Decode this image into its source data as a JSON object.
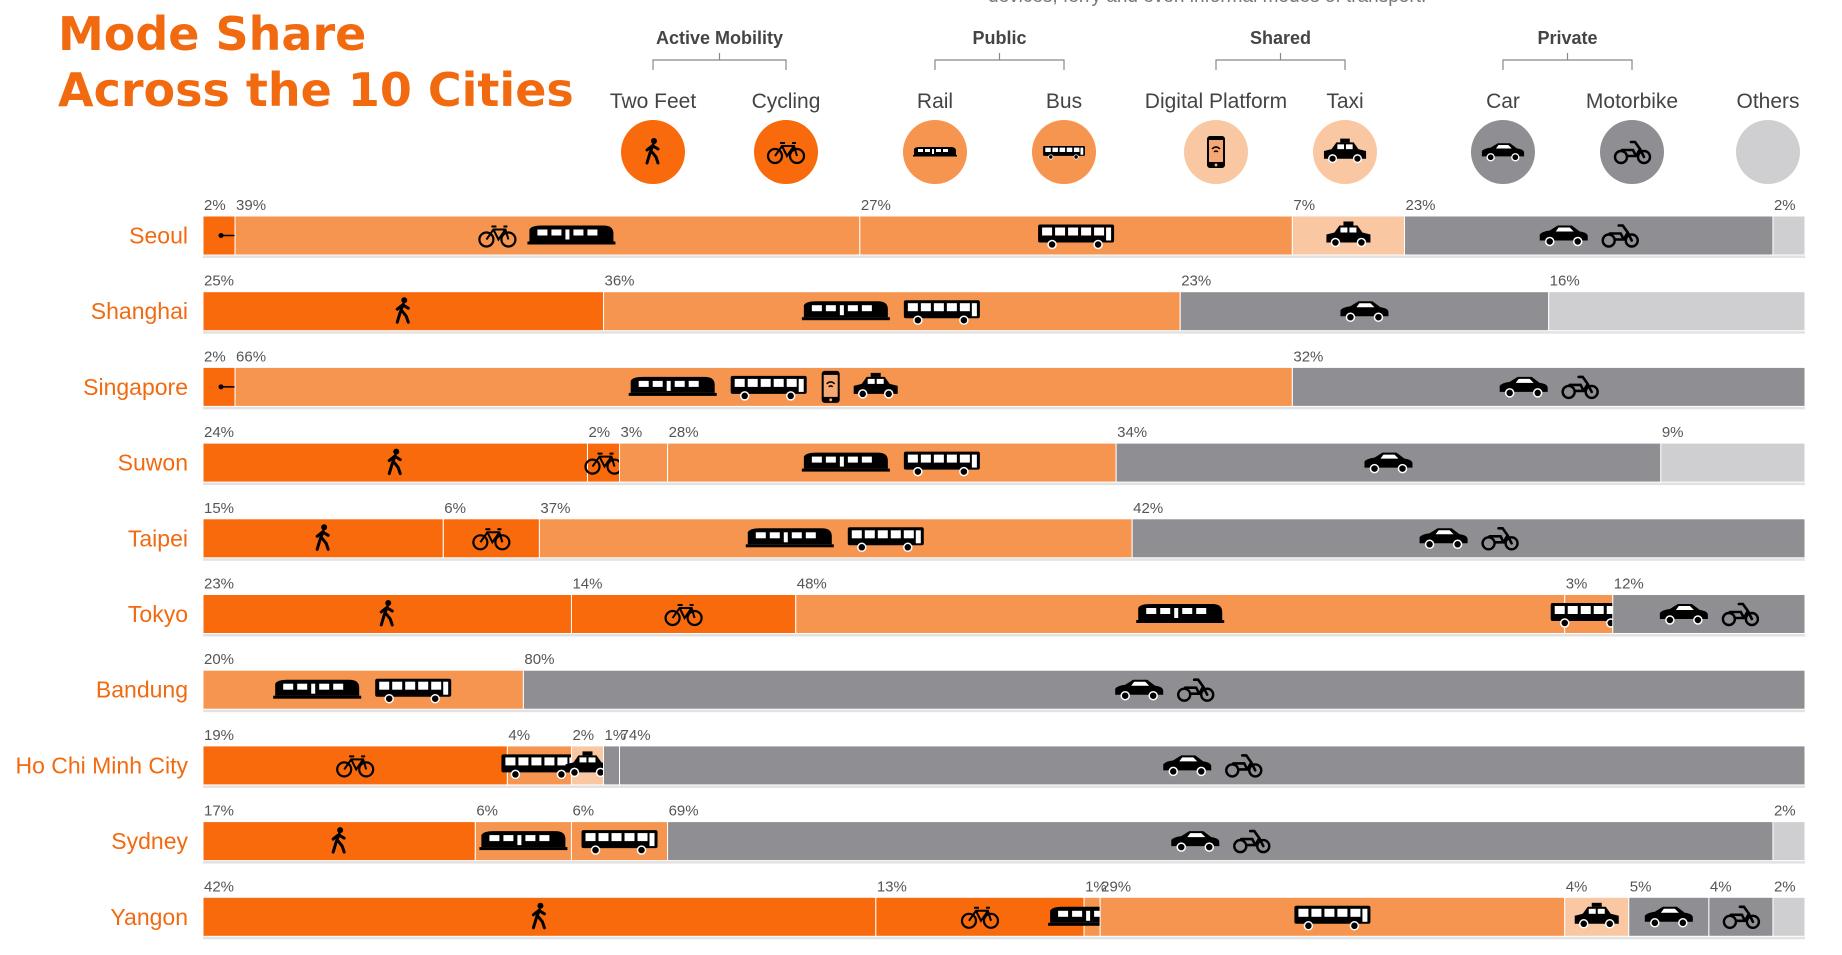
{
  "title": [
    "Mode Share",
    "Across the 10 Cities"
  ],
  "top_note": "devices, ferry and even informal modes of transport.",
  "legend": {
    "groups": [
      {
        "label": "Active Mobility"
      },
      {
        "label": "Public"
      },
      {
        "label": "Shared"
      },
      {
        "label": "Private"
      }
    ],
    "items": [
      {
        "label": "Two Feet",
        "icon": "walk-icon",
        "color": "#f96a0c"
      },
      {
        "label": "Cycling",
        "icon": "bicycle-icon",
        "color": "#f96a0c"
      },
      {
        "label": "Rail",
        "icon": "train-icon",
        "color": "#f6954f"
      },
      {
        "label": "Bus",
        "icon": "bus-icon",
        "color": "#f6954f"
      },
      {
        "label": "Digital Platform",
        "icon": "smartphone-icon",
        "color": "#fac7a3"
      },
      {
        "label": "Taxi",
        "icon": "taxi-icon",
        "color": "#fac7a3"
      },
      {
        "label": "Car",
        "icon": "car-icon",
        "color": "#8f8f93"
      },
      {
        "label": "Motorbike",
        "icon": "motorbike-icon",
        "color": "#8f8f93"
      },
      {
        "label": "Others",
        "icon": "",
        "color": "#cfcfd1"
      }
    ]
  },
  "colors": {
    "active": "#f96a0c",
    "public": "#f6954f",
    "shared": "#fac7a3",
    "private": "#8f8f93",
    "others": "#cfcfd1",
    "city_label": "#f26a10"
  },
  "chart_data": {
    "type": "bar",
    "orientation": "horizontal",
    "stacked": true,
    "xlim": [
      0,
      100
    ],
    "categories": [
      "Seoul",
      "Shanghai",
      "Singapore",
      "Suwon",
      "Taipei",
      "Tokyo",
      "Bandung",
      "Ho Chi Minh City",
      "Sydney",
      "Yangon"
    ],
    "rows": [
      {
        "city": "Seoul",
        "segments": [
          {
            "group": "active",
            "value": 2,
            "label": "2%",
            "icons": [
              "walk-icon"
            ],
            "callout": true
          },
          {
            "group": "public",
            "value": 39,
            "label": "39%",
            "icons": [
              "bicycle-icon",
              "train-icon"
            ]
          },
          {
            "group": "public",
            "value": 27,
            "label": "27%",
            "icons": [
              "bus-icon"
            ]
          },
          {
            "group": "shared",
            "value": 7,
            "label": "7%",
            "icons": [
              "taxi-icon"
            ]
          },
          {
            "group": "private",
            "value": 23,
            "label": "23%",
            "icons": [
              "car-icon",
              "motorbike-icon"
            ]
          },
          {
            "group": "others",
            "value": 2,
            "label": "2%",
            "icons": []
          }
        ]
      },
      {
        "city": "Shanghai",
        "segments": [
          {
            "group": "active",
            "value": 25,
            "label": "25%",
            "icons": [
              "walk-icon"
            ]
          },
          {
            "group": "public",
            "value": 36,
            "label": "36%",
            "icons": [
              "train-icon",
              "bus-icon"
            ]
          },
          {
            "group": "private",
            "value": 23,
            "label": "23%",
            "icons": [
              "car-icon"
            ]
          },
          {
            "group": "others",
            "value": 16,
            "label": "16%",
            "icons": []
          }
        ]
      },
      {
        "city": "Singapore",
        "segments": [
          {
            "group": "active",
            "value": 2,
            "label": "2%",
            "icons": [
              "bicycle-icon"
            ],
            "callout": true
          },
          {
            "group": "public",
            "value": 66,
            "label": "66%",
            "icons": [
              "train-icon",
              "bus-icon",
              "smartphone-icon",
              "taxi-icon"
            ]
          },
          {
            "group": "private",
            "value": 32,
            "label": "32%",
            "icons": [
              "car-icon",
              "motorbike-icon"
            ]
          }
        ]
      },
      {
        "city": "Suwon",
        "segments": [
          {
            "group": "active",
            "value": 24,
            "label": "24%",
            "icons": [
              "walk-icon"
            ]
          },
          {
            "group": "active",
            "value": 2,
            "label": "2%",
            "icons": [
              "bicycle-icon"
            ]
          },
          {
            "group": "public",
            "value": 3,
            "label": "3%",
            "icons": []
          },
          {
            "group": "public",
            "value": 28,
            "label": "28%",
            "icons": [
              "train-icon",
              "bus-icon"
            ]
          },
          {
            "group": "private",
            "value": 34,
            "label": "34%",
            "icons": [
              "car-icon"
            ]
          },
          {
            "group": "others",
            "value": 9,
            "label": "9%",
            "icons": []
          }
        ]
      },
      {
        "city": "Taipei",
        "segments": [
          {
            "group": "active",
            "value": 15,
            "label": "15%",
            "icons": [
              "walk-icon"
            ]
          },
          {
            "group": "active",
            "value": 6,
            "label": "6%",
            "icons": [
              "bicycle-icon"
            ]
          },
          {
            "group": "public",
            "value": 37,
            "label": "37%",
            "icons": [
              "train-icon",
              "bus-icon"
            ]
          },
          {
            "group": "private",
            "value": 42,
            "label": "42%",
            "icons": [
              "car-icon",
              "motorbike-icon"
            ]
          }
        ]
      },
      {
        "city": "Tokyo",
        "segments": [
          {
            "group": "active",
            "value": 23,
            "label": "23%",
            "icons": [
              "walk-icon"
            ]
          },
          {
            "group": "active",
            "value": 14,
            "label": "14%",
            "icons": [
              "bicycle-icon"
            ]
          },
          {
            "group": "public",
            "value": 48,
            "label": "48%",
            "icons": [
              "train-icon"
            ]
          },
          {
            "group": "public",
            "value": 3,
            "label": "3%",
            "icons": [
              "bus-icon"
            ]
          },
          {
            "group": "private",
            "value": 12,
            "label": "12%",
            "icons": [
              "car-icon",
              "motorbike-icon"
            ]
          }
        ]
      },
      {
        "city": "Bandung",
        "segments": [
          {
            "group": "public",
            "value": 20,
            "label": "20%",
            "icons": [
              "train-icon",
              "bus-icon"
            ]
          },
          {
            "group": "private",
            "value": 80,
            "label": "80%",
            "icons": [
              "car-icon",
              "motorbike-icon"
            ]
          }
        ]
      },
      {
        "city": "Ho Chi Minh City",
        "segments": [
          {
            "group": "active",
            "value": 19,
            "label": "19%",
            "icons": [
              "bicycle-icon"
            ]
          },
          {
            "group": "public",
            "value": 4,
            "label": "4%",
            "icons": [
              "bus-icon"
            ]
          },
          {
            "group": "shared",
            "value": 2,
            "label": "2%",
            "icons": [
              "taxi-icon"
            ]
          },
          {
            "group": "private",
            "value": 1,
            "label": "1%",
            "icons": []
          },
          {
            "group": "private",
            "value": 74,
            "label": "74%",
            "icons": [
              "car-icon",
              "motorbike-icon"
            ]
          }
        ]
      },
      {
        "city": "Sydney",
        "segments": [
          {
            "group": "active",
            "value": 17,
            "label": "17%",
            "icons": [
              "walk-icon"
            ]
          },
          {
            "group": "public",
            "value": 6,
            "label": "6%",
            "icons": [
              "train-icon"
            ]
          },
          {
            "group": "public",
            "value": 6,
            "label": "6%",
            "icons": [
              "bus-icon"
            ]
          },
          {
            "group": "private",
            "value": 69,
            "label": "69%",
            "icons": [
              "car-icon",
              "motorbike-icon"
            ]
          },
          {
            "group": "others",
            "value": 2,
            "label": "2%",
            "icons": []
          }
        ]
      },
      {
        "city": "Yangon",
        "segments": [
          {
            "group": "active",
            "value": 42,
            "label": "42%",
            "icons": [
              "walk-icon"
            ]
          },
          {
            "group": "active",
            "value": 13,
            "label": "13%",
            "icons": [
              "bicycle-icon"
            ]
          },
          {
            "group": "public",
            "value": 1,
            "label": "1%",
            "icons": [
              "train-icon"
            ]
          },
          {
            "group": "public",
            "value": 29,
            "label": "29%",
            "icons": [
              "bus-icon"
            ]
          },
          {
            "group": "shared",
            "value": 4,
            "label": "4%",
            "icons": [
              "taxi-icon"
            ]
          },
          {
            "group": "private",
            "value": 5,
            "label": "5%",
            "icons": [
              "car-icon"
            ]
          },
          {
            "group": "private",
            "value": 4,
            "label": "4%",
            "icons": [
              "motorbike-icon"
            ]
          },
          {
            "group": "others",
            "value": 2,
            "label": "2%",
            "icons": []
          }
        ]
      }
    ]
  }
}
